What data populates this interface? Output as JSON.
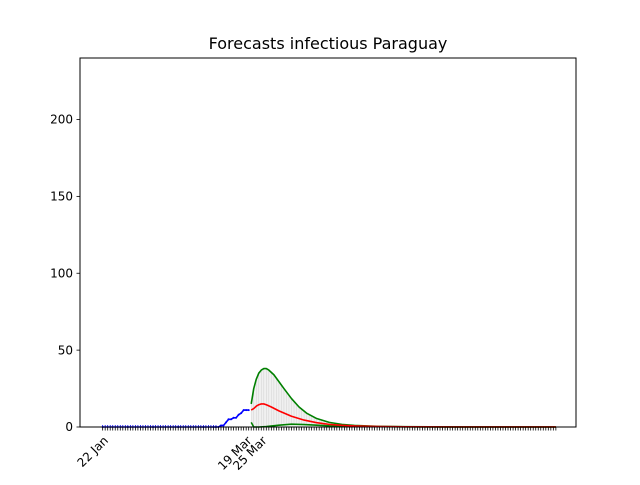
{
  "chart_data": {
    "type": "line",
    "title": "Forecasts infectious Paraguay",
    "xlabel": "",
    "ylabel": "",
    "x_tick_labels": [
      {
        "day": 0,
        "label": "22 Jan"
      },
      {
        "day": 57,
        "label": "19 Mar"
      },
      {
        "day": 63,
        "label": "25 Mar"
      }
    ],
    "xlim_days": [
      -9,
      188
    ],
    "ylim": [
      0,
      240
    ],
    "y_ticks": [
      0,
      50,
      100,
      150,
      200
    ],
    "grid": false,
    "legend": "none",
    "forecast_start_day": 59,
    "series": [
      {
        "role": "observed",
        "color": "#0000ff",
        "points": [
          [
            0,
            0
          ],
          [
            10,
            0
          ],
          [
            20,
            0
          ],
          [
            30,
            0
          ],
          [
            40,
            0
          ],
          [
            44,
            0
          ],
          [
            45,
            0
          ],
          [
            46,
            0
          ],
          [
            47,
            1
          ],
          [
            48,
            1
          ],
          [
            49,
            3
          ],
          [
            50,
            5
          ],
          [
            51,
            5
          ],
          [
            52,
            6
          ],
          [
            53,
            6
          ],
          [
            54,
            8
          ],
          [
            55,
            9
          ],
          [
            56,
            11
          ],
          [
            57,
            11
          ],
          [
            58,
            11
          ]
        ]
      },
      {
        "role": "forecast-central",
        "color": "#ff0000",
        "points": [
          [
            59,
            11
          ],
          [
            60,
            12
          ],
          [
            61,
            13.5
          ],
          [
            62,
            14.5
          ],
          [
            63,
            15
          ],
          [
            64,
            15
          ],
          [
            65,
            14.5
          ],
          [
            67,
            13
          ],
          [
            70,
            10.5
          ],
          [
            75,
            7
          ],
          [
            80,
            4.5
          ],
          [
            85,
            2.8
          ],
          [
            90,
            1.7
          ],
          [
            95,
            1.1
          ],
          [
            100,
            0.7
          ],
          [
            110,
            0.3
          ],
          [
            120,
            0.15
          ],
          [
            140,
            0.05
          ],
          [
            160,
            0.02
          ],
          [
            180,
            0.01
          ]
        ]
      },
      {
        "role": "forecast-upper",
        "color": "#008000",
        "points": [
          [
            59,
            15
          ],
          [
            60,
            25
          ],
          [
            61,
            31
          ],
          [
            62,
            35
          ],
          [
            63,
            37
          ],
          [
            64,
            38
          ],
          [
            65,
            38
          ],
          [
            66,
            37
          ],
          [
            68,
            34
          ],
          [
            70,
            29.5
          ],
          [
            72,
            25
          ],
          [
            75,
            18.5
          ],
          [
            78,
            13
          ],
          [
            81,
            9
          ],
          [
            85,
            5.5
          ],
          [
            90,
            3
          ],
          [
            95,
            1.7
          ],
          [
            100,
            1
          ],
          [
            110,
            0.4
          ],
          [
            120,
            0.2
          ],
          [
            140,
            0.05
          ],
          [
            160,
            0.02
          ],
          [
            180,
            0.01
          ]
        ]
      },
      {
        "role": "forecast-lower",
        "color": "#008000",
        "points": [
          [
            59,
            3
          ],
          [
            60,
            0
          ],
          [
            62,
            0
          ],
          [
            65,
            0.3
          ],
          [
            70,
            1.2
          ],
          [
            75,
            1.8
          ],
          [
            80,
            1.6
          ],
          [
            85,
            1.2
          ],
          [
            90,
            0.8
          ],
          [
            100,
            0.4
          ],
          [
            110,
            0.2
          ],
          [
            120,
            0.1
          ],
          [
            140,
            0.03
          ],
          [
            160,
            0.01
          ],
          [
            180,
            0
          ]
        ]
      }
    ],
    "band_color": "#d3d3d3",
    "tick_mark_day_range": [
      0,
      180
    ]
  }
}
